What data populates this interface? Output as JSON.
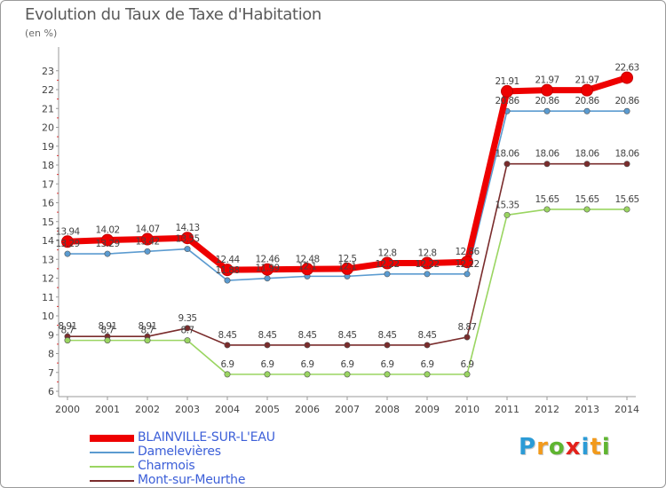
{
  "chart_data": {
    "type": "line",
    "title": "Evolution du Taux de Taxe d'Habitation",
    "subtitle": "(en %)",
    "x": [
      "2000",
      "2001",
      "2002",
      "2003",
      "2004",
      "2005",
      "2006",
      "2007",
      "2008",
      "2009",
      "2010",
      "2011",
      "2012",
      "2013",
      "2014"
    ],
    "yticks": [
      6,
      7,
      8,
      9,
      10,
      11,
      12,
      13,
      14,
      15,
      16,
      17,
      18,
      19,
      20,
      21,
      22,
      23
    ],
    "ylim": [
      6,
      23
    ],
    "grid": false,
    "legend_position": "bottom-left",
    "series": [
      {
        "name": "Mont-sur-Meurthe",
        "color": "#7a2c2c",
        "values": [
          8.91,
          8.91,
          8.91,
          9.35,
          8.45,
          8.45,
          8.45,
          8.45,
          8.45,
          8.45,
          8.87,
          18.06,
          18.06,
          18.06,
          18.06
        ],
        "labels": [
          "8.91",
          "8.91",
          "8.91",
          "9.35",
          "8.45",
          "8.45",
          "8.45",
          "8.45",
          "8.45",
          "8.45",
          "8.87",
          "18.06",
          "18.06",
          "18.06",
          "18.06"
        ]
      },
      {
        "name": "Charmois",
        "color": "#9ad561",
        "values": [
          8.7,
          8.7,
          8.7,
          8.7,
          6.9,
          6.9,
          6.9,
          6.9,
          6.9,
          6.9,
          6.9,
          15.35,
          15.65,
          15.65,
          15.65
        ],
        "labels": [
          "8.7",
          "8.7",
          "8.7",
          "8.7",
          "6.9",
          "6.9",
          "6.9",
          "6.9",
          "6.9",
          "6.9",
          "6.9",
          "15.35",
          "15.65",
          "15.65",
          "15.65"
        ]
      },
      {
        "name": "Damelevières",
        "color": "#5b9bd0",
        "values": [
          13.29,
          13.29,
          13.42,
          13.55,
          11.88,
          11.99,
          12.1,
          12.1,
          12.22,
          12.22,
          12.22,
          20.86,
          20.86,
          20.86,
          20.86
        ],
        "labels": [
          "13.29",
          "13.29",
          "13.42",
          "13.55",
          "11.88",
          "11.99",
          "12.1",
          "12.1",
          "12.22",
          "12.22",
          "12.22",
          "20.86",
          "20.86",
          "20.86",
          "20.86"
        ]
      },
      {
        "name": "BLAINVILLE-SUR-L'EAU",
        "color": "#ee0000",
        "values": [
          13.94,
          14.02,
          14.07,
          14.13,
          12.44,
          12.46,
          12.48,
          12.5,
          12.8,
          12.8,
          12.86,
          21.91,
          21.97,
          21.97,
          22.63
        ],
        "labels": [
          "13.94",
          "14.02",
          "14.07",
          "14.13",
          "12.44",
          "12.46",
          "12.48",
          "12.5",
          "12.8",
          "12.8",
          "12.86",
          "21.91",
          "21.97",
          "21.97",
          "22.63"
        ]
      }
    ]
  },
  "legend": {
    "items": [
      {
        "label": "BLAINVILLE-SUR-L'EAU",
        "color": "#ee0000"
      },
      {
        "label": "Damelevières",
        "color": "#5b9bd0"
      },
      {
        "label": "Charmois",
        "color": "#9ad561"
      },
      {
        "label": "Mont-sur-Meurthe",
        "color": "#7a2c2c"
      }
    ]
  },
  "logo": {
    "letters": [
      "P",
      "r",
      "o",
      "x",
      "i",
      "t",
      "i"
    ],
    "colors": [
      "#2b9bd6",
      "#f29a1b",
      "#5fb531",
      "#e3211b",
      "#2b9bd6",
      "#f29a1b",
      "#5fb531"
    ]
  }
}
